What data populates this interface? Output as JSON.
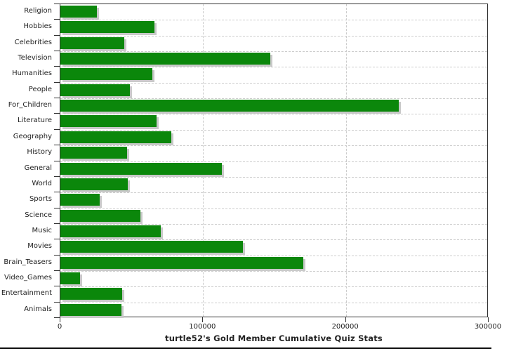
{
  "chart_data": {
    "type": "bar",
    "orientation": "horizontal",
    "title": "turtle52's Gold Member Cumulative Quiz Stats",
    "categories": [
      "Religion",
      "Hobbies",
      "Celebrities",
      "Television",
      "Humanities",
      "People",
      "For_Children",
      "Literature",
      "Geography",
      "History",
      "General",
      "World",
      "Sports",
      "Science",
      "Music",
      "Movies",
      "Brain_Teasers",
      "Video_Games",
      "Entertainment",
      "Animals"
    ],
    "values": [
      25600,
      65900,
      44800,
      147000,
      64400,
      48700,
      237000,
      67400,
      77700,
      46700,
      113100,
      47200,
      27500,
      56100,
      70300,
      127900,
      170200,
      13800,
      43300,
      42800
    ],
    "xlabel": "",
    "ylabel": "",
    "xlim": [
      0,
      300000
    ],
    "x_ticks": [
      0,
      100000,
      200000,
      300000
    ],
    "x_tick_labels": [
      "0",
      "100000",
      "200000",
      "300000"
    ],
    "grid": "dashed",
    "legend": "none",
    "bar_color": "#0b870b",
    "shadow_color": "#c9c9c9",
    "grid_color": "#cccccc",
    "axis_color": "#333333",
    "text_color": "#222222"
  }
}
